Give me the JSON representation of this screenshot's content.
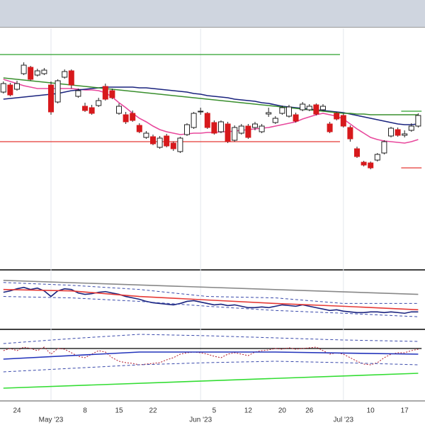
{
  "chart_data": {
    "type": "candlestick",
    "categories": [
      null,
      null,
      "24",
      null,
      null,
      null,
      null,
      null,
      null,
      null,
      null,
      null,
      "8",
      null,
      null,
      null,
      null,
      "15",
      null,
      null,
      null,
      null,
      "22",
      null,
      null,
      null,
      null,
      null,
      null,
      null,
      null,
      "5",
      null,
      null,
      null,
      null,
      "12",
      null,
      null,
      null,
      null,
      "20",
      null,
      null,
      null,
      "26",
      null,
      null,
      null,
      null,
      null,
      null,
      null,
      null,
      "10",
      null,
      null,
      null,
      null,
      "17",
      null,
      null
    ],
    "month_labels": [
      null,
      null,
      null,
      null,
      null,
      null,
      null,
      "May '23",
      null,
      null,
      null,
      null,
      null,
      null,
      null,
      null,
      null,
      null,
      null,
      null,
      null,
      null,
      null,
      null,
      null,
      null,
      null,
      null,
      null,
      "Jun '23",
      null,
      null,
      null,
      null,
      null,
      null,
      null,
      null,
      null,
      null,
      null,
      null,
      null,
      null,
      null,
      null,
      null,
      null,
      null,
      null,
      "Jul '23",
      null,
      null,
      null,
      null,
      null,
      null,
      null,
      null,
      null,
      null,
      null
    ],
    "open": [
      250,
      260,
      254,
      276,
      285,
      274,
      276,
      260,
      236,
      271,
      280,
      244,
      230,
      228,
      231,
      258,
      252,
      220,
      218,
      220,
      203,
      186,
      187,
      172,
      188,
      178,
      166,
      190,
      200,
      222,
      220,
      207,
      194,
      205,
      182,
      192,
      202,
      200,
      194,
      219,
      207,
      220,
      216,
      218,
      225,
      225,
      232,
      225,
      205,
      220,
      217,
      200,
      170,
      151,
      150,
      154,
      164,
      188,
      197,
      189,
      196,
      202
    ],
    "high": [
      265,
      263,
      266,
      292,
      287,
      283,
      284,
      265,
      268,
      282,
      282,
      255,
      235,
      232,
      242,
      262,
      255,
      234,
      222,
      224,
      206,
      195,
      190,
      188,
      191,
      180,
      187,
      206,
      222,
      228,
      222,
      210,
      210,
      208,
      203,
      205,
      205,
      208,
      205,
      228,
      216,
      231,
      232,
      221,
      236,
      233,
      234,
      233,
      208,
      222,
      220,
      203,
      173,
      153,
      152,
      164,
      182,
      201,
      200,
      196,
      206,
      220
    ],
    "low": [
      248,
      244,
      252,
      274,
      266,
      272,
      274,
      218,
      234,
      269,
      255,
      242,
      222,
      218,
      229,
      238,
      240,
      218,
      205,
      208,
      192,
      184,
      175,
      170,
      172,
      167,
      164,
      188,
      198,
      218,
      198,
      190,
      192,
      178,
      180,
      190,
      184,
      196,
      192,
      215,
      205,
      218,
      214,
      207,
      223,
      223,
      217,
      223,
      192,
      210,
      200,
      180,
      157,
      145,
      141,
      152,
      162,
      186,
      187,
      186,
      194,
      200
    ],
    "close": [
      262,
      246,
      262,
      288,
      268,
      280,
      281,
      222,
      266,
      279,
      260,
      252,
      224,
      220,
      238,
      240,
      242,
      230,
      208,
      210,
      194,
      192,
      177,
      185,
      174,
      170,
      185,
      204,
      220,
      223,
      200,
      192,
      208,
      180,
      200,
      202,
      186,
      205,
      202,
      221,
      213,
      228,
      229,
      209,
      233,
      230,
      219,
      230,
      194,
      212,
      202,
      184,
      159,
      147,
      143,
      162,
      180,
      199,
      189,
      191,
      202,
      217
    ],
    "up_color": "#ffffff",
    "down_color": "#d7191c",
    "ylim": [
      0,
      340
    ],
    "series": [
      {
        "color": "#e8489c",
        "values": [
          268,
          265,
          262,
          259,
          257,
          255,
          255,
          255,
          255,
          255,
          255,
          254,
          253,
          253,
          252,
          249,
          243,
          235,
          228,
          220,
          213,
          208,
          202,
          197,
          194,
          192,
          190,
          191,
          192,
          192,
          193,
          193,
          194,
          194,
          195,
          196,
          197,
          198,
          199,
          200,
          202,
          204,
          206,
          208,
          212,
          215,
          218,
          220,
          218,
          216,
          212,
          205,
          198,
          192,
          186,
          183,
          181,
          180,
          179,
          178,
          180,
          183
        ]
      },
      {
        "color": "#1a237e",
        "values": [
          240,
          241,
          242,
          243,
          244,
          245,
          246,
          247,
          248,
          250,
          252,
          253,
          254,
          255,
          256,
          257,
          257,
          257,
          257,
          257,
          256,
          256,
          255,
          254,
          253,
          252,
          251,
          250,
          248,
          247,
          245,
          244,
          243,
          242,
          240,
          239,
          238,
          237,
          235,
          234,
          232,
          230,
          229,
          228,
          227,
          226,
          225,
          224,
          223,
          222,
          221,
          219,
          217,
          215,
          213,
          211,
          209,
          207,
          205,
          204,
          204,
          205
        ]
      },
      {
        "color": "#3a8f2e",
        "values": [
          270,
          269,
          268,
          267,
          266,
          265,
          264,
          263,
          262,
          261,
          260,
          259,
          258,
          257,
          256,
          255,
          254,
          253,
          252,
          251,
          250,
          249,
          248,
          247,
          246,
          245,
          244,
          243,
          242,
          241,
          240,
          239,
          238,
          237,
          236,
          235,
          234,
          233,
          232,
          231,
          230,
          229,
          228,
          227,
          226,
          225,
          224,
          223,
          222,
          221,
          220,
          220,
          219,
          219,
          218,
          218,
          218,
          218,
          218,
          218,
          218,
          218
        ]
      }
    ],
    "levels": [
      {
        "value": 303,
        "color": "#2ca02c",
        "start": 0,
        "end": 49
      },
      {
        "value": 180,
        "color": "#e53935",
        "start": 0,
        "end": 49
      },
      {
        "value": 223,
        "color": "#2ca02c",
        "start": 59,
        "end": 61
      },
      {
        "value": 143,
        "color": "#e53935",
        "start": 59,
        "end": 61
      }
    ],
    "panels": [
      {
        "ylim": [
          0,
          80
        ],
        "series": [
          {
            "color": "#1a237e",
            "values": [
              50,
              52,
              55,
              57,
              54,
              56,
              52,
              44,
              52,
              55,
              54,
              49,
              47,
              48,
              50,
              51,
              49,
              47,
              44,
              42,
              40,
              37,
              35,
              34,
              33,
              32,
              34,
              37,
              38,
              36,
              34,
              32,
              33,
              31,
              32,
              30,
              28,
              28,
              29,
              28,
              30,
              32,
              31,
              30,
              32,
              30,
              28,
              26,
              24,
              25,
              23,
              22,
              21,
              21,
              22,
              22,
              21,
              22,
              21,
              20,
              22,
              22
            ]
          },
          {
            "color": "#e53935",
            "x": [
              0,
              10,
              20,
              30,
              40,
              50,
              61
            ],
            "values": [
              54,
              52,
              44,
              39,
              34,
              30,
              25
            ]
          },
          {
            "color": "#3949ab",
            "dash": "4,3",
            "x": [
              0,
              10,
              20,
              30,
              40,
              50,
              61
            ],
            "values": [
              64,
              60,
              54,
              44,
              42,
              34,
              34
            ]
          },
          {
            "color": "#3949ab",
            "dash": "4,3",
            "x": [
              0,
              10,
              20,
              30,
              40,
              50,
              61
            ],
            "values": [
              44,
              42,
              37,
              30,
              24,
              20,
              15
            ]
          },
          {
            "color": "#888888",
            "x": [
              0,
              61
            ],
            "values": [
              67,
              47
            ]
          }
        ]
      },
      {
        "ylim": [
          0,
          98
        ],
        "levels": [
          {
            "value": 73,
            "color": "#000000",
            "start": 0,
            "end": 61
          }
        ],
        "series": [
          {
            "color": "#b0182a",
            "dash": "2,2",
            "values": [
              70,
              73,
              70,
              75,
              73,
              70,
              75,
              65,
              73,
              72,
              67,
              62,
              60,
              65,
              70,
              68,
              60,
              55,
              53,
              52,
              50,
              51,
              52,
              53,
              57,
              60,
              65,
              67,
              68,
              67,
              65,
              62,
              60,
              65,
              67,
              65,
              63,
              68,
              70,
              71,
              73,
              72,
              74,
              72,
              73,
              74,
              75,
              70,
              65,
              67,
              65,
              60,
              55,
              51,
              50,
              53,
              60,
              65,
              67,
              67,
              70,
              72
            ]
          },
          {
            "color": "#2233bb",
            "x": [
              0,
              20,
              40,
              61
            ],
            "values": [
              58,
              68,
              68,
              65
            ]
          },
          {
            "color": "#3949ab",
            "dash": "4,3",
            "x": [
              0,
              10,
              20,
              30,
              40,
              50,
              61
            ],
            "values": [
              80,
              87,
              93,
              91,
              88,
              85,
              83
            ]
          },
          {
            "color": "#3949ab",
            "dash": "4,3",
            "x": [
              0,
              10,
              20,
              30,
              40,
              50,
              61
            ],
            "values": [
              40,
              45,
              50,
              53,
              55,
              53,
              50
            ]
          },
          {
            "color": "#33dd33",
            "x": [
              0,
              61
            ],
            "values": [
              17,
              38
            ]
          }
        ]
      }
    ]
  }
}
